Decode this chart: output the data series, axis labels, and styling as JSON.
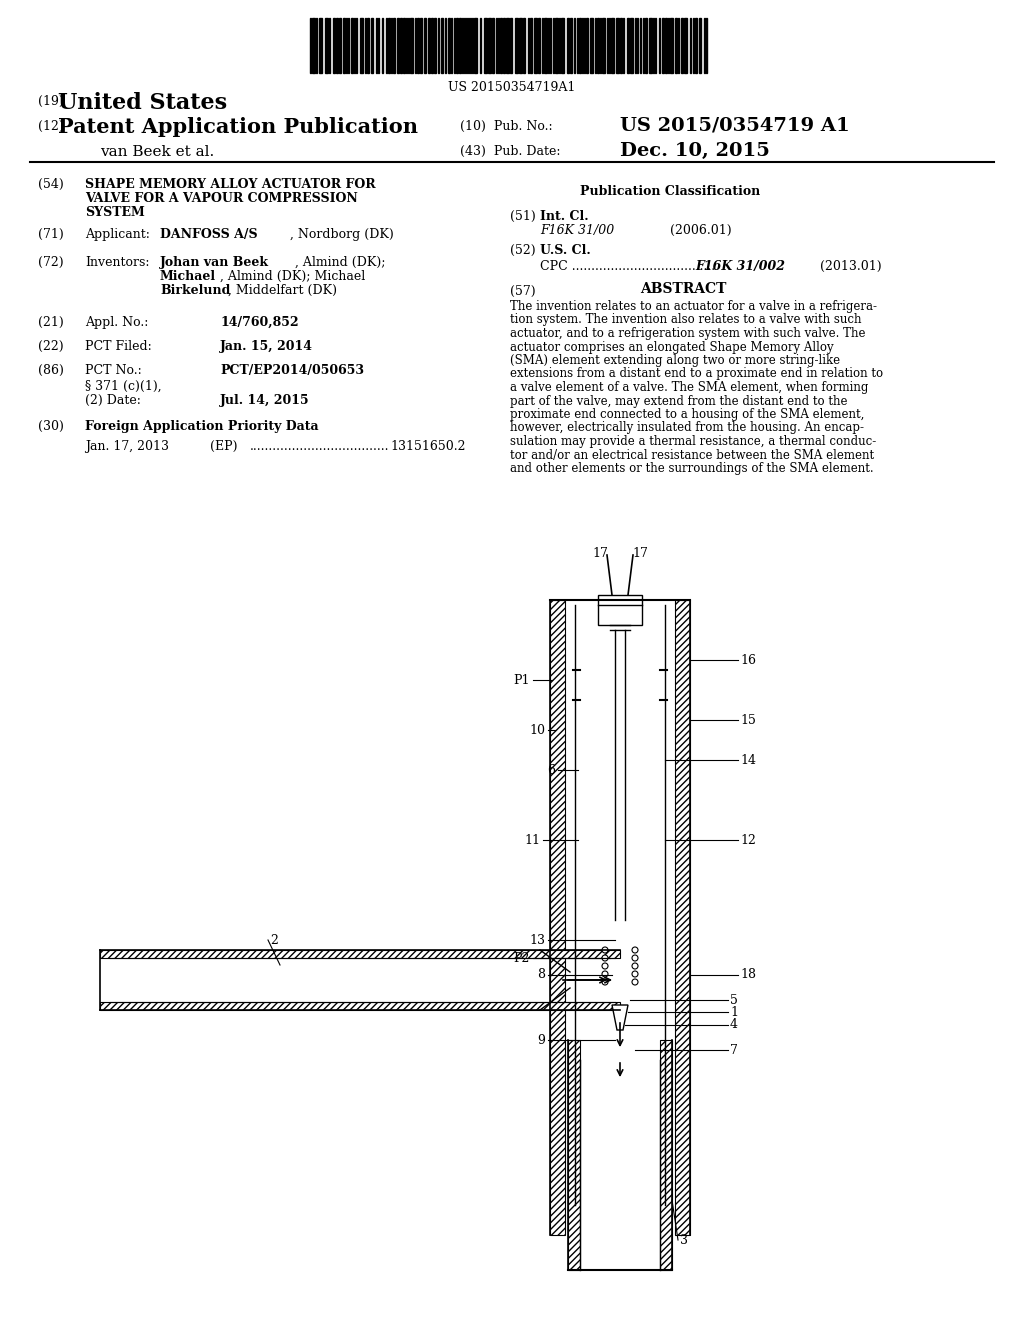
{
  "background_color": "#ffffff",
  "barcode_text": "US 20150354719A1",
  "title19": "(19)",
  "title19_text": "United States",
  "title12": "(12)",
  "title12_text": "Patent Application Publication",
  "author": "van Beek et al.",
  "pub_no_label": "(10)  Pub. No.:",
  "pub_no_value": "US 2015/0354719 A1",
  "pub_date_label": "(43)  Pub. Date:",
  "pub_date_value": "Dec. 10, 2015",
  "field54_num": "(54)",
  "field54_title": "SHAPE MEMORY ALLOY ACTUATOR FOR\nVALVE FOR A VAPOUR COMPRESSION\nSYSTEM",
  "pub_class_title": "Publication Classification",
  "field51_num": "(51)",
  "field51_label": "Int. Cl.",
  "field51_class": "F16K 31/00",
  "field51_year": "(2006.01)",
  "field52_num": "(52)",
  "field52_label": "U.S. Cl.",
  "field52_cpc": "CPC .....................................",
  "field52_cpc_val": "F16K 31/002",
  "field52_cpc_year": "(2013.01)",
  "field57_num": "(57)",
  "field57_title": "ABSTRACT",
  "abstract_text": "The invention relates to an actuator for a valve in a refrigera-\ntion system. The invention also relates to a valve with such\nactuator, and to a refrigeration system with such valve. The\nactuator comprises an elongated Shape Memory Alloy\n(SMA) element extending along two or more string-like\nextensions from a distant end to a proximate end in relation to\na valve element of a valve. The SMA element, when forming\npart of the valve, may extend from the distant end to the\nproximate end connected to a housing of the SMA element,\nhowever, electrically insulated from the housing. An encap-\nsulation may provide a thermal resistance, a thermal conduc-\ntor and/or an electrical resistance between the SMA element\nand other elements or the surroundings of the SMA element.",
  "field71_num": "(71)",
  "field71_label": "Applicant:",
  "field71_value": "DANFOSS A/S, Nordborg (DK)",
  "field72_num": "(72)",
  "field72_label": "Inventors:",
  "field72_value": "Johan van Beek, Almind (DK); Michael\nBirkelund, Middelfart (DK)",
  "field21_num": "(21)",
  "field21_label": "Appl. No.:",
  "field21_value": "14/760,852",
  "field22_num": "(22)",
  "field22_label": "PCT Filed:",
  "field22_value": "Jan. 15, 2014",
  "field86_num": "(86)",
  "field86_label": "PCT No.:",
  "field86_value": "PCT/EP2014/050653",
  "field86_sub1": "§ 371 (c)(1),",
  "field86_sub2": "(2) Date:",
  "field86_sub2_val": "Jul. 14, 2015",
  "field30_num": "(30)",
  "field30_label": "Foreign Application Priority Data",
  "field30_date": "Jan. 17, 2013",
  "field30_country": "(EP)",
  "field30_dots": "....................................",
  "field30_val": "13151650.2"
}
